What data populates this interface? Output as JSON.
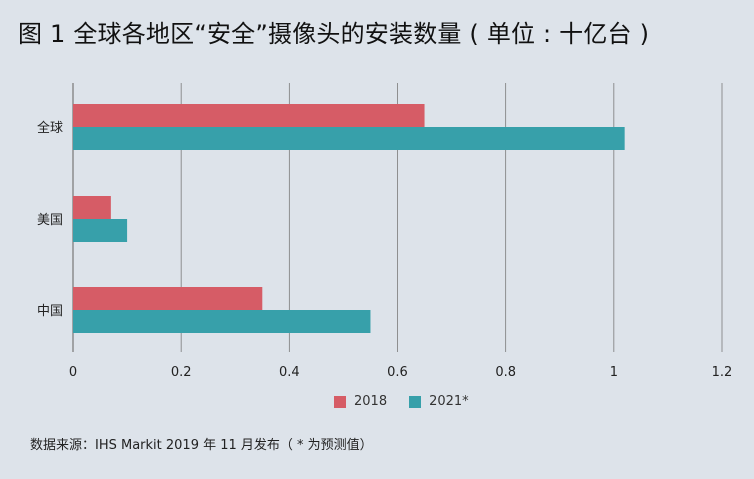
{
  "chart_data": {
    "type": "bar",
    "orientation": "horizontal",
    "title": "图 1  全球各地区“安全”摄像头的安装数量 ( 单位 : 十亿台 )",
    "categories": [
      "全球",
      "美国",
      "中国"
    ],
    "series": [
      {
        "name": "2018",
        "values": [
          0.65,
          0.07,
          0.35
        ],
        "color": "#d65c66"
      },
      {
        "name": "2021*",
        "values": [
          1.02,
          0.1,
          0.55
        ],
        "color": "#37a0aa"
      }
    ],
    "xlim": [
      0,
      1.2
    ],
    "xticks": [
      0,
      0.2,
      0.4,
      0.6,
      0.8,
      1,
      1.2
    ],
    "x_tick_labels": [
      "0",
      "0.2",
      "0.4",
      "0.6",
      "0.8",
      "1",
      "1.2"
    ],
    "grid": true,
    "legend_position": "bottom-center",
    "source": "数据来源：IHS  Markit    2019 年 11 月发布（ * 为预测值）"
  }
}
